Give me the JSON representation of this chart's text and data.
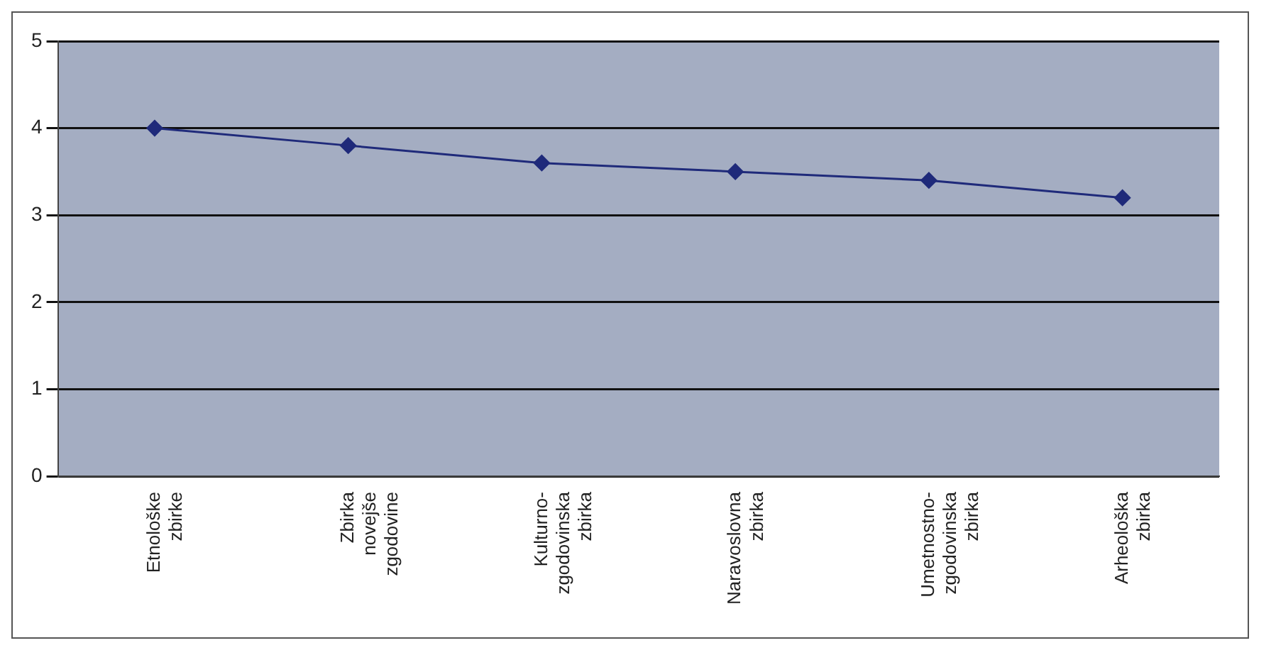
{
  "chart_data": {
    "type": "line",
    "categories": [
      "Etnološke\nzbirke",
      "Zbirka\nnovejše\nzgodovine",
      "Kulturno-\nzgodovinska\nzbirka",
      "Naravoslovna\nzbirka",
      "Umetnostno-\nzgodovinska\nzbirka",
      "Arheološka\nzbirka"
    ],
    "series": [
      {
        "color": "#1f2a7a",
        "values": [
          4.0,
          3.8,
          3.6,
          3.5,
          3.4,
          3.2
        ]
      }
    ],
    "ylim": [
      0,
      5
    ],
    "yticks": [
      0,
      1,
      2,
      3,
      4,
      5
    ],
    "grid": "y",
    "legend": false,
    "marker": "diamond",
    "line_style": "solid"
  }
}
